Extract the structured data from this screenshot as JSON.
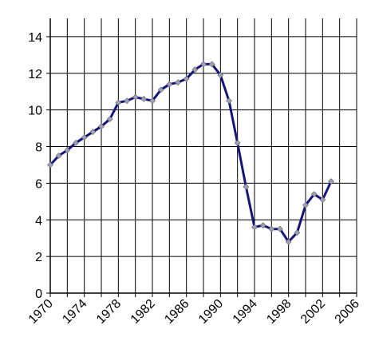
{
  "chart_data": {
    "type": "line",
    "x": [
      1970,
      1971,
      1972,
      1973,
      1974,
      1975,
      1976,
      1977,
      1978,
      1979,
      1980,
      1981,
      1982,
      1983,
      1984,
      1985,
      1986,
      1987,
      1988,
      1989,
      1990,
      1991,
      1992,
      1993,
      1994,
      1995,
      1996,
      1997,
      1998,
      1999,
      2000,
      2001,
      2002,
      2003
    ],
    "series": [
      {
        "color": "#14147a",
        "marker_color": "#a0a0b0",
        "values": [
          7.0,
          7.5,
          7.8,
          8.2,
          8.5,
          8.8,
          9.1,
          9.5,
          10.4,
          10.5,
          10.7,
          10.6,
          10.5,
          11.1,
          11.4,
          11.5,
          11.7,
          12.2,
          12.5,
          12.5,
          11.9,
          10.5,
          8.2,
          5.8,
          3.6,
          3.7,
          3.5,
          3.5,
          2.8,
          3.3,
          4.8,
          5.4,
          5.1,
          6.1
        ]
      }
    ],
    "xlim": [
      1970,
      2006
    ],
    "xticks": [
      1970,
      1974,
      1978,
      1982,
      1986,
      1990,
      1994,
      1998,
      2002,
      2006
    ],
    "xminorticks": [
      1972,
      1976,
      1980,
      1984,
      1988,
      1992,
      1996,
      2000,
      2004
    ],
    "ylim": [
      0,
      15
    ],
    "yticks": [
      0,
      2,
      4,
      6,
      8,
      10,
      12,
      14
    ],
    "grid": true
  }
}
